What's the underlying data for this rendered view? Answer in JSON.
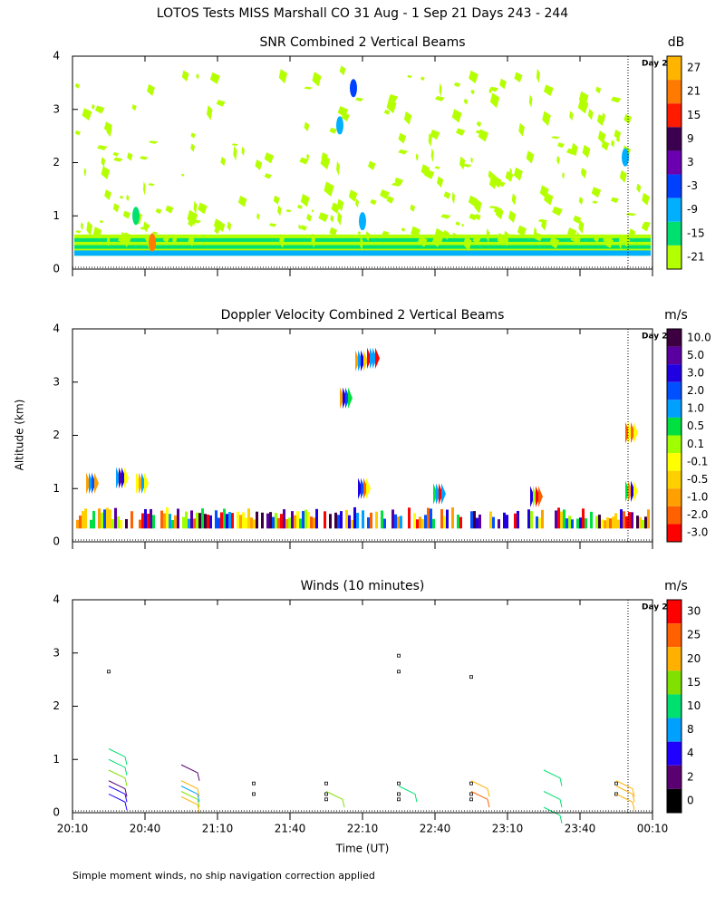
{
  "title": "LOTOS Tests MISS Marshall CO  31 Aug -  1 Sep 21 Days 243 - 244",
  "xlabel": "Time (UT)",
  "ylabel": "Altitude (km)",
  "footer": "Simple moment winds, no ship navigation correction applied",
  "xticks": [
    "20:10",
    "20:40",
    "21:10",
    "21:40",
    "22:10",
    "22:40",
    "23:10",
    "23:40",
    "00:10"
  ],
  "chart_data": [
    {
      "type": "heatmap",
      "title": "SNR Combined 2 Vertical Beams",
      "annotation": "Day 2",
      "ylim": [
        0,
        4
      ],
      "yticks": [
        0,
        1,
        2,
        3,
        4
      ],
      "colorbar": {
        "unit": "dB",
        "ticks": [
          27,
          21,
          15,
          9,
          3,
          -3,
          -9,
          -15,
          -21
        ],
        "colors": [
          "#ffb400",
          "#ff7a00",
          "#ff1a00",
          "#3c0050",
          "#6a00b0",
          "#0040ff",
          "#00b0ff",
          "#00e070",
          "#b4ff00"
        ]
      }
    },
    {
      "type": "heatmap",
      "title": "Doppler Velocity Combined 2 Vertical Beams",
      "annotation": "Day 2",
      "ylim": [
        0,
        4
      ],
      "yticks": [
        0,
        1,
        2,
        3,
        4
      ],
      "colorbar": {
        "unit": "m/s",
        "ticks": [
          {
            "value": 10,
            "label": "10.0"
          },
          {
            "value": 5,
            "label": "5.0"
          },
          {
            "value": 3,
            "label": "3.0"
          },
          {
            "value": 2,
            "label": "2.0"
          },
          {
            "value": 1,
            "label": "1.0"
          },
          0.5,
          0.1,
          -0.1,
          -0.5,
          {
            "value": -1,
            "label": "-1.0"
          },
          {
            "value": -2,
            "label": "-2.0"
          },
          {
            "value": -3,
            "label": "-3.0"
          }
        ],
        "colors": [
          "#3c0040",
          "#5a00a0",
          "#2000e0",
          "#0050ff",
          "#00a0ff",
          "#00e040",
          "#a0ff00",
          "#ffff00",
          "#ffd000",
          "#ffa000",
          "#ff6000",
          "#ff0000"
        ]
      }
    },
    {
      "type": "barbs",
      "title": "Winds (10 minutes)",
      "annotation": "Day 2",
      "ylim": [
        0,
        4
      ],
      "yticks": [
        0,
        1,
        2,
        3,
        4
      ],
      "colorbar": {
        "unit": "m/s",
        "ticks": [
          30,
          25,
          20,
          15,
          10,
          8,
          4,
          2,
          0
        ],
        "colors": [
          "#ff0000",
          "#ff6000",
          "#ffb000",
          "#80e000",
          "#00e070",
          "#00a0ff",
          "#2000ff",
          "#5a0070",
          "#000000"
        ]
      }
    }
  ]
}
